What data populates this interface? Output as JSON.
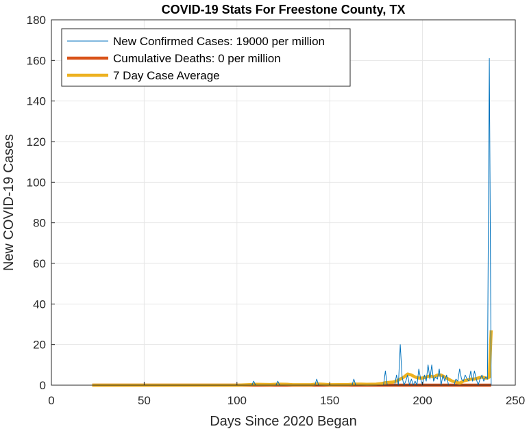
{
  "chart_data": {
    "type": "line",
    "title": "COVID-19 Stats For Freestone County, TX",
    "xlabel": "Days Since 2020 Began",
    "ylabel": "New COVID-19 Cases",
    "xlim": [
      0,
      250
    ],
    "ylim": [
      0,
      180
    ],
    "xticks": [
      0,
      50,
      100,
      150,
      200,
      250
    ],
    "yticks": [
      0,
      20,
      40,
      60,
      80,
      100,
      120,
      140,
      160,
      180
    ],
    "grid": true,
    "legend_position": "top-left",
    "series": [
      {
        "name": "New Confirmed Cases: 19000 per million",
        "color": "#0072BD",
        "style": "thin-line",
        "x": [
          22,
          60,
          100,
          107,
          108,
          109,
          110,
          115,
          120,
          121,
          122,
          123,
          130,
          140,
          142,
          143,
          144,
          150,
          160,
          162,
          163,
          164,
          170,
          175,
          179,
          180,
          181,
          182,
          185,
          186,
          187,
          188,
          189,
          190,
          191,
          192,
          193,
          194,
          195,
          196,
          197,
          198,
          199,
          200,
          201,
          202,
          203,
          204,
          205,
          206,
          207,
          208,
          209,
          210,
          211,
          212,
          213,
          214,
          215,
          216,
          217,
          218,
          219,
          220,
          221,
          222,
          223,
          224,
          225,
          226,
          227,
          228,
          229,
          230,
          231,
          232,
          233,
          234,
          235,
          236,
          237
        ],
        "y": [
          0,
          0,
          0,
          0,
          0,
          2,
          0,
          0,
          0,
          0,
          2,
          0,
          0,
          0,
          0,
          3,
          0,
          0,
          0,
          0,
          3,
          0,
          0,
          0,
          0,
          7,
          0,
          0,
          0,
          5,
          0,
          20,
          4,
          0,
          2,
          5,
          0,
          3,
          0,
          2,
          0,
          8,
          3,
          0,
          5,
          2,
          10,
          3,
          10,
          2,
          4,
          3,
          8,
          0,
          5,
          2,
          5,
          0,
          0,
          0,
          0,
          3,
          2,
          8,
          3,
          2,
          5,
          3,
          2,
          7,
          2,
          7,
          3,
          0,
          3,
          5,
          2,
          4,
          3,
          161,
          0
        ]
      },
      {
        "name": "Cumulative Deaths: 0 per million",
        "color": "#D95319",
        "style": "thick-line",
        "x": [
          22,
          237
        ],
        "y": [
          0,
          0
        ]
      },
      {
        "name": "7 Day Case Average",
        "color": "#EDB120",
        "style": "thick-line",
        "x": [
          22,
          60,
          100,
          108,
          110,
          118,
          122,
          127,
          130,
          140,
          143,
          147,
          150,
          160,
          163,
          167,
          170,
          175,
          178,
          180,
          184,
          186,
          188,
          190,
          192,
          194,
          196,
          198,
          200,
          202,
          204,
          206,
          208,
          210,
          212,
          214,
          216,
          218,
          220,
          222,
          224,
          226,
          228,
          230,
          232,
          234,
          235,
          236,
          237
        ],
        "y": [
          0,
          0,
          0,
          0.3,
          0.4,
          0.3,
          0.5,
          0.4,
          0.2,
          0.2,
          0.6,
          0.4,
          0.2,
          0.3,
          0.5,
          0.5,
          0.4,
          0.5,
          0.8,
          1.2,
          1.5,
          2,
          3,
          4,
          5.5,
          5,
          4,
          3.5,
          3.5,
          4,
          4.5,
          4,
          5,
          5,
          4,
          3,
          2,
          1.5,
          1,
          2,
          2.5,
          3,
          3,
          3.5,
          4,
          3.5,
          3.5,
          4,
          27
        ]
      }
    ]
  }
}
